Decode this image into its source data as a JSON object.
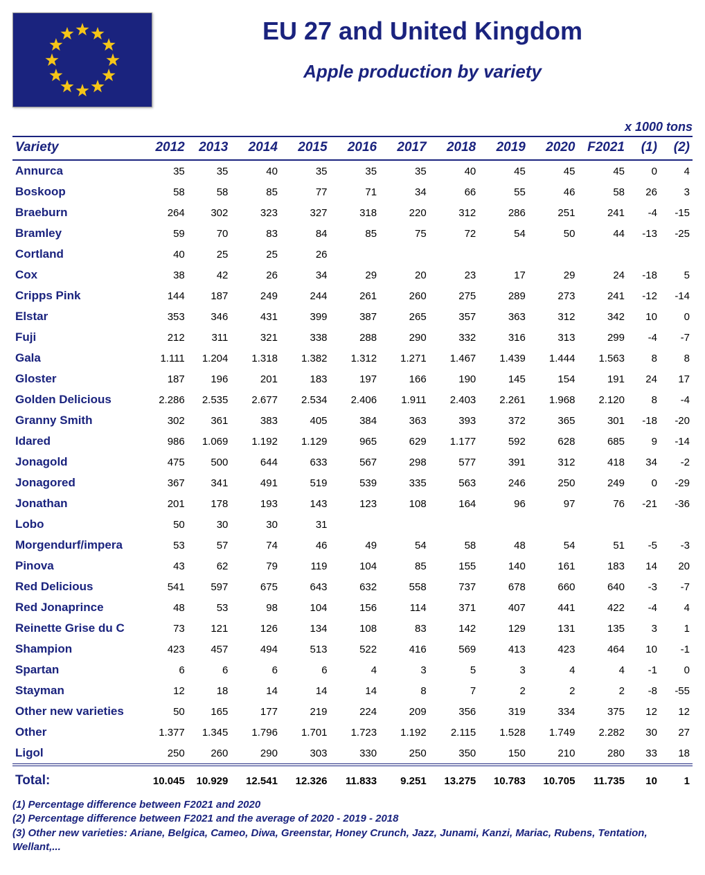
{
  "title": "EU 27 and United Kingdom",
  "subtitle": "Apple production by variety",
  "units_label": "x 1000 tons",
  "flag": {
    "bg_color": "#1a237e",
    "star_color": "#f5c518",
    "star_count": 12,
    "ring_radius": 44,
    "star_size": 10
  },
  "colors": {
    "heading": "#1a237e",
    "rule": "#1a237e",
    "body_text": "#000000",
    "background": "#ffffff"
  },
  "columns": [
    "Variety",
    "2012",
    "2013",
    "2014",
    "2015",
    "2016",
    "2017",
    "2018",
    "2019",
    "2020",
    "F2021",
    "(1)",
    "(2)"
  ],
  "rows": [
    {
      "name": "Annurca",
      "vals": [
        "35",
        "35",
        "40",
        "35",
        "35",
        "35",
        "40",
        "45",
        "45",
        "45",
        "0",
        "4"
      ]
    },
    {
      "name": "Boskoop",
      "vals": [
        "58",
        "58",
        "85",
        "77",
        "71",
        "34",
        "66",
        "55",
        "46",
        "58",
        "26",
        "3"
      ]
    },
    {
      "name": "Braeburn",
      "vals": [
        "264",
        "302",
        "323",
        "327",
        "318",
        "220",
        "312",
        "286",
        "251",
        "241",
        "-4",
        "-15"
      ]
    },
    {
      "name": "Bramley",
      "vals": [
        "59",
        "70",
        "83",
        "84",
        "85",
        "75",
        "72",
        "54",
        "50",
        "44",
        "-13",
        "-25"
      ]
    },
    {
      "name": "Cortland",
      "vals": [
        "40",
        "25",
        "25",
        "26",
        "",
        "",
        "",
        "",
        "",
        "",
        "",
        ""
      ]
    },
    {
      "name": "Cox",
      "vals": [
        "38",
        "42",
        "26",
        "34",
        "29",
        "20",
        "23",
        "17",
        "29",
        "24",
        "-18",
        "5"
      ]
    },
    {
      "name": "Cripps Pink",
      "vals": [
        "144",
        "187",
        "249",
        "244",
        "261",
        "260",
        "275",
        "289",
        "273",
        "241",
        "-12",
        "-14"
      ]
    },
    {
      "name": "Elstar",
      "vals": [
        "353",
        "346",
        "431",
        "399",
        "387",
        "265",
        "357",
        "363",
        "312",
        "342",
        "10",
        "0"
      ]
    },
    {
      "name": "Fuji",
      "vals": [
        "212",
        "311",
        "321",
        "338",
        "288",
        "290",
        "332",
        "316",
        "313",
        "299",
        "-4",
        "-7"
      ]
    },
    {
      "name": "Gala",
      "vals": [
        "1.111",
        "1.204",
        "1.318",
        "1.382",
        "1.312",
        "1.271",
        "1.467",
        "1.439",
        "1.444",
        "1.563",
        "8",
        "8"
      ]
    },
    {
      "name": "Gloster",
      "vals": [
        "187",
        "196",
        "201",
        "183",
        "197",
        "166",
        "190",
        "145",
        "154",
        "191",
        "24",
        "17"
      ]
    },
    {
      "name": "Golden Delicious",
      "vals": [
        "2.286",
        "2.535",
        "2.677",
        "2.534",
        "2.406",
        "1.911",
        "2.403",
        "2.261",
        "1.968",
        "2.120",
        "8",
        "-4"
      ]
    },
    {
      "name": "Granny Smith",
      "vals": [
        "302",
        "361",
        "383",
        "405",
        "384",
        "363",
        "393",
        "372",
        "365",
        "301",
        "-18",
        "-20"
      ]
    },
    {
      "name": "Idared",
      "vals": [
        "986",
        "1.069",
        "1.192",
        "1.129",
        "965",
        "629",
        "1.177",
        "592",
        "628",
        "685",
        "9",
        "-14"
      ]
    },
    {
      "name": "Jonagold",
      "vals": [
        "475",
        "500",
        "644",
        "633",
        "567",
        "298",
        "577",
        "391",
        "312",
        "418",
        "34",
        "-2"
      ]
    },
    {
      "name": "Jonagored",
      "vals": [
        "367",
        "341",
        "491",
        "519",
        "539",
        "335",
        "563",
        "246",
        "250",
        "249",
        "0",
        "-29"
      ]
    },
    {
      "name": "Jonathan",
      "vals": [
        "201",
        "178",
        "193",
        "143",
        "123",
        "108",
        "164",
        "96",
        "97",
        "76",
        "-21",
        "-36"
      ]
    },
    {
      "name": "Lobo",
      "vals": [
        "50",
        "30",
        "30",
        "31",
        "",
        "",
        "",
        "",
        "",
        "",
        "",
        ""
      ]
    },
    {
      "name": "Morgendurf/impera",
      "vals": [
        "53",
        "57",
        "74",
        "46",
        "49",
        "54",
        "58",
        "48",
        "54",
        "51",
        "-5",
        "-3"
      ]
    },
    {
      "name": "Pinova",
      "vals": [
        "43",
        "62",
        "79",
        "119",
        "104",
        "85",
        "155",
        "140",
        "161",
        "183",
        "14",
        "20"
      ]
    },
    {
      "name": "Red Delicious",
      "vals": [
        "541",
        "597",
        "675",
        "643",
        "632",
        "558",
        "737",
        "678",
        "660",
        "640",
        "-3",
        "-7"
      ]
    },
    {
      "name": "Red Jonaprince",
      "vals": [
        "48",
        "53",
        "98",
        "104",
        "156",
        "114",
        "371",
        "407",
        "441",
        "422",
        "-4",
        "4"
      ]
    },
    {
      "name": "Reinette Grise du C",
      "vals": [
        "73",
        "121",
        "126",
        "134",
        "108",
        "83",
        "142",
        "129",
        "131",
        "135",
        "3",
        "1"
      ]
    },
    {
      "name": "Shampion",
      "vals": [
        "423",
        "457",
        "494",
        "513",
        "522",
        "416",
        "569",
        "413",
        "423",
        "464",
        "10",
        "-1"
      ]
    },
    {
      "name": "Spartan",
      "vals": [
        "6",
        "6",
        "6",
        "6",
        "4",
        "3",
        "5",
        "3",
        "4",
        "4",
        "-1",
        "0"
      ]
    },
    {
      "name": "Stayman",
      "vals": [
        "12",
        "18",
        "14",
        "14",
        "14",
        "8",
        "7",
        "2",
        "2",
        "2",
        "-8",
        "-55"
      ]
    },
    {
      "name": "Other new varieties",
      "vals": [
        "50",
        "165",
        "177",
        "219",
        "224",
        "209",
        "356",
        "319",
        "334",
        "375",
        "12",
        "12"
      ]
    },
    {
      "name": "Other",
      "vals": [
        "1.377",
        "1.345",
        "1.796",
        "1.701",
        "1.723",
        "1.192",
        "2.115",
        "1.528",
        "1.749",
        "2.282",
        "30",
        "27"
      ]
    },
    {
      "name": "Ligol",
      "vals": [
        "250",
        "260",
        "290",
        "303",
        "330",
        "250",
        "350",
        "150",
        "210",
        "280",
        "33",
        "18"
      ]
    }
  ],
  "total": {
    "label": "Total:",
    "vals": [
      "10.045",
      "10.929",
      "12.541",
      "12.326",
      "11.833",
      "9.251",
      "13.275",
      "10.783",
      "10.705",
      "11.735",
      "10",
      "1"
    ]
  },
  "footnotes": [
    "(1) Percentage difference between F2021 and 2020",
    "(2) Percentage difference between F2021 and the average of 2020 - 2019 - 2018",
    "(3) Other new varieties: Ariane, Belgica, Cameo, Diwa, Greenstar, Honey Crunch, Jazz, Junami, Kanzi, Mariac, Rubens, Tentation, Wellant,..."
  ]
}
